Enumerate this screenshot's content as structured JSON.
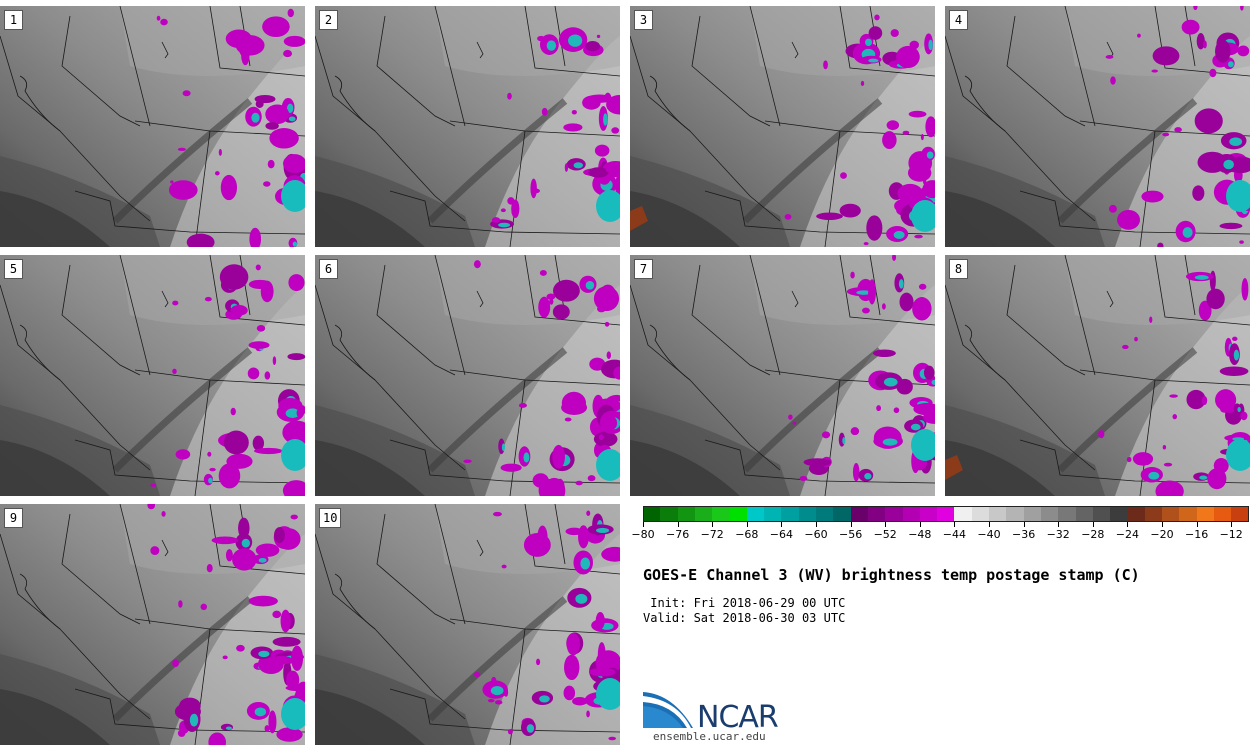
{
  "panels": [
    "1",
    "2",
    "3",
    "4",
    "5",
    "6",
    "7",
    "8",
    "9",
    "10"
  ],
  "colorbar": {
    "min": -80,
    "max": -10,
    "step": 2,
    "tick_labels": [
      "−80",
      "−76",
      "−72",
      "−68",
      "−64",
      "−60",
      "−56",
      "−52",
      "−48",
      "−44",
      "−40",
      "−36",
      "−32",
      "−28",
      "−24",
      "−20",
      "−16",
      "−12"
    ],
    "colors": [
      "#006400",
      "#0a7d0a",
      "#129612",
      "#1aaf1a",
      "#19c819",
      "#00e000",
      "#00c8c8",
      "#00b4b4",
      "#00a0a0",
      "#008c8c",
      "#007a7a",
      "#006666",
      "#6a006a",
      "#820082",
      "#9a009a",
      "#b200b2",
      "#c800c8",
      "#e000e0",
      "#f0f0f0",
      "#dcdcdc",
      "#c8c8c8",
      "#b4b4b4",
      "#a0a0a0",
      "#8c8c8c",
      "#787878",
      "#646464",
      "#505050",
      "#3c3c3c",
      "#6b2a1a",
      "#8b3a1a",
      "#b0501a",
      "#d0661a",
      "#f0781a",
      "#e65a12",
      "#c84010"
    ]
  },
  "title": "GOES-E Channel 3 (WV) brightness temp postage stamp (C)",
  "init_line": " Init: Fri 2018-06-29 00 UTC",
  "valid_line": "Valid: Sat 2018-06-30 03 UTC",
  "logo_text": "NCAR",
  "site": "ensemble.ucar.edu"
}
